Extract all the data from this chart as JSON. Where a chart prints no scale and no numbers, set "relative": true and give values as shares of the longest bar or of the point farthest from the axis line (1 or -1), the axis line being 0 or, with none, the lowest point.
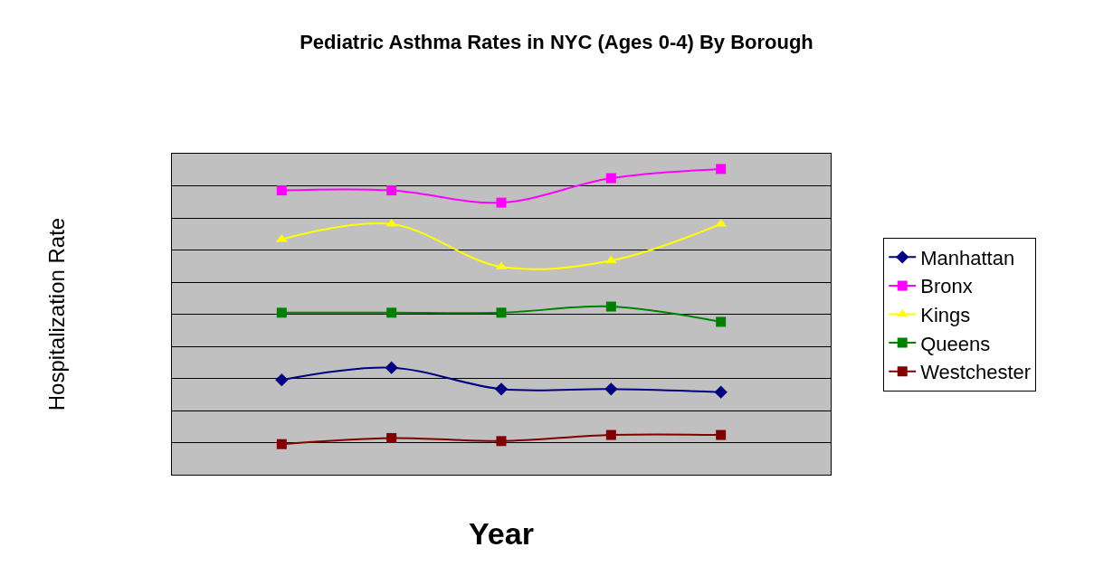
{
  "chart_data": {
    "type": "line",
    "title": "Pediatric Asthma Rates in NYC (Ages 0-4) By Borough",
    "xlabel": "Year",
    "ylabel": "Hospitalization Rate",
    "relative": true,
    "categories": [
      null,
      null,
      null,
      null,
      null
    ],
    "grid": "y",
    "legend": "right",
    "line_style": "solid",
    "series": [
      {
        "name": "Manhattan",
        "color": "#000080",
        "marker": "diamond",
        "values": [
          0.31,
          0.35,
          0.28,
          0.28,
          0.27
        ]
      },
      {
        "name": "Bronx",
        "color": "#ff00ff",
        "marker": "square",
        "values": [
          0.93,
          0.93,
          0.89,
          0.97,
          1.0
        ]
      },
      {
        "name": "Kings",
        "color": "#ffff00",
        "marker": "triangle",
        "values": [
          0.77,
          0.82,
          0.68,
          0.7,
          0.82
        ]
      },
      {
        "name": "Queens",
        "color": "#008000",
        "marker": "square",
        "values": [
          0.53,
          0.53,
          0.53,
          0.55,
          0.5
        ]
      },
      {
        "name": "Westchester",
        "color": "#800000",
        "marker": "square",
        "values": [
          0.1,
          0.12,
          0.11,
          0.13,
          0.13
        ]
      }
    ]
  }
}
